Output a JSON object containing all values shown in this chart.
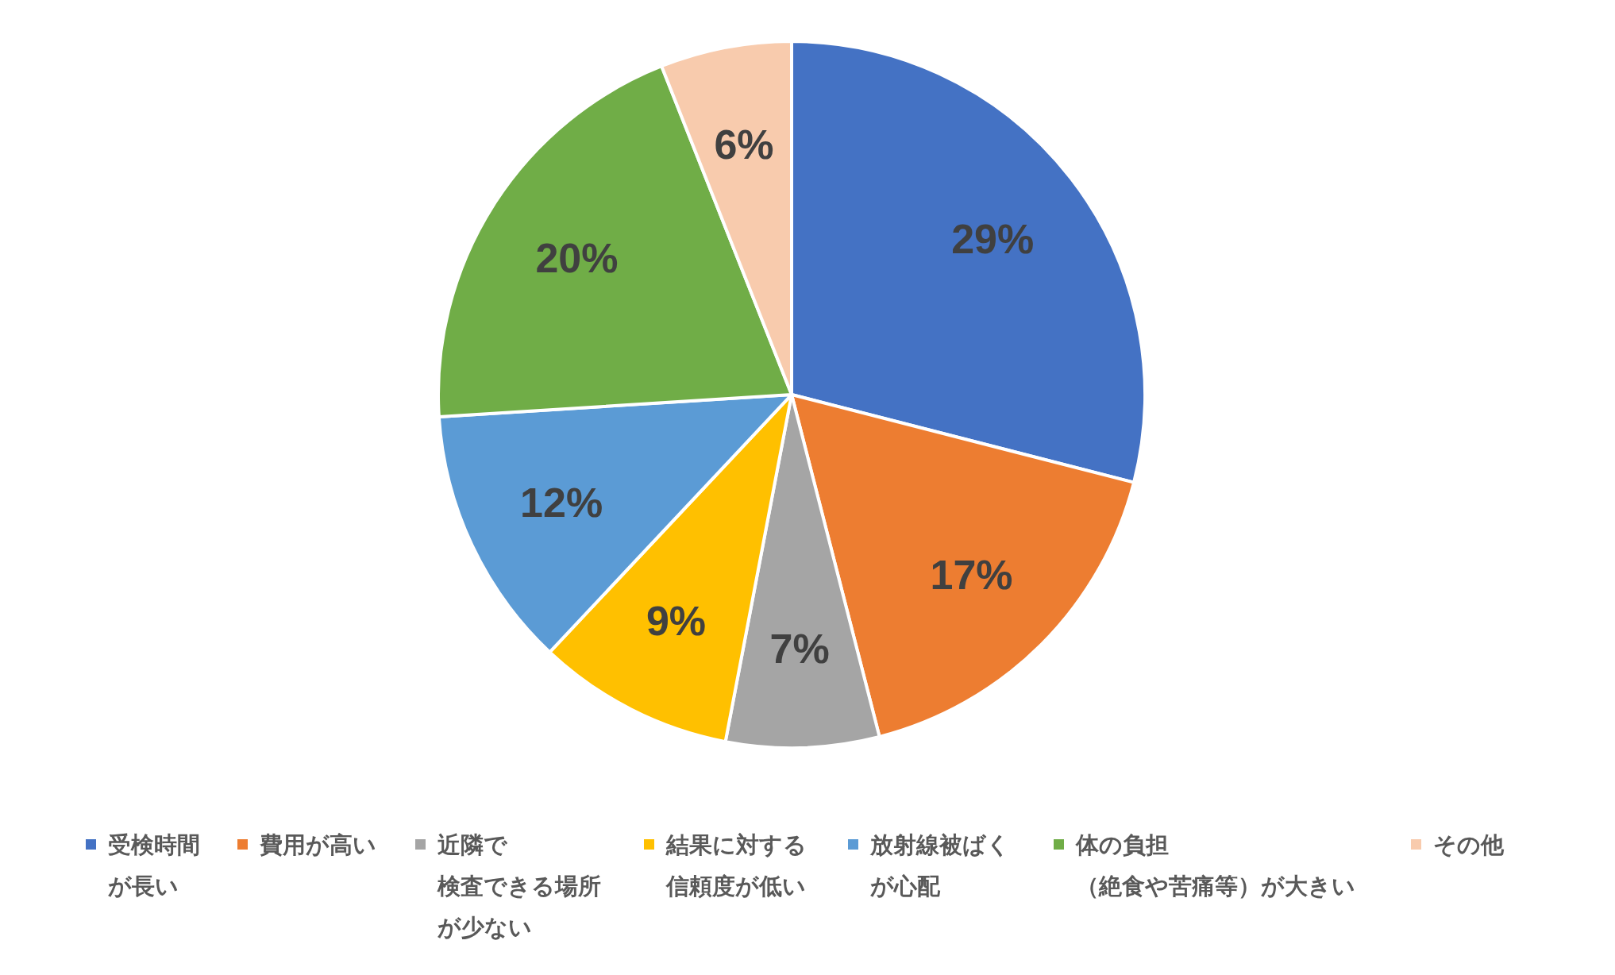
{
  "chart_data": {
    "type": "pie",
    "categories": [
      "受検時間が長い",
      "費用が高い",
      "近隣で検査できる場所が少ない",
      "結果に対する信頼度が低い",
      "放射線被ばくが心配",
      "体の負担（絶食や苦痛等）が大きい",
      "その他"
    ],
    "values": [
      29,
      17,
      7,
      9,
      12,
      20,
      6
    ],
    "value_labels": [
      "29%",
      "17%",
      "7%",
      "9%",
      "12%",
      "20%",
      "6%"
    ],
    "colors": [
      "#4472c4",
      "#ed7d31",
      "#a5a5a5",
      "#ffc000",
      "#5b9bd5",
      "#70ad47",
      "#f8cbad"
    ],
    "legend": "bottom"
  }
}
